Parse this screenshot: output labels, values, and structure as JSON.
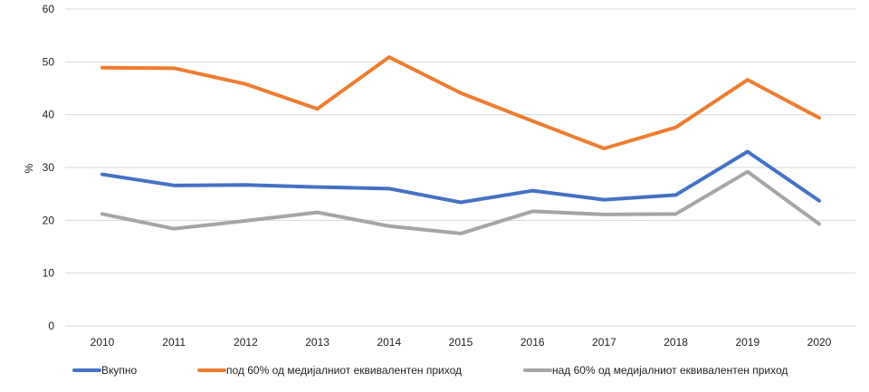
{
  "chart_data": {
    "type": "line",
    "ylabel": "%",
    "ylim": [
      0,
      60
    ],
    "yticks": [
      "0",
      "10",
      "20",
      "30",
      "40",
      "50",
      "60"
    ],
    "categories": [
      "2010",
      "2011",
      "2012",
      "2013",
      "2014",
      "2015",
      "2016",
      "2017",
      "2018",
      "2019",
      "2020"
    ],
    "grid": true,
    "legend_position": "bottom",
    "series": [
      {
        "name": "Вкупно",
        "color": "#4472C4",
        "values": [
          28.7,
          26.6,
          26.7,
          26.3,
          26.0,
          23.4,
          25.6,
          23.9,
          24.8,
          33.0,
          23.7
        ]
      },
      {
        "name": "под 60% од медијалниот еквивалентен приход",
        "color": "#ED7D31",
        "values": [
          48.9,
          48.8,
          45.8,
          41.1,
          50.9,
          44.1,
          38.8,
          33.6,
          37.6,
          46.6,
          39.4
        ]
      },
      {
        "name": "над 60% од медијалниот еквивалентен приход",
        "color": "#A5A5A5",
        "values": [
          21.2,
          18.4,
          19.9,
          21.5,
          18.9,
          17.5,
          21.7,
          21.1,
          21.2,
          29.2,
          19.3
        ]
      }
    ]
  }
}
